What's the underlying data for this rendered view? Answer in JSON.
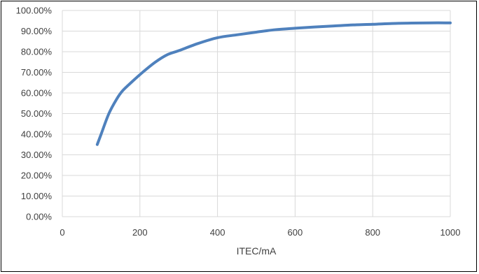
{
  "chart_data": {
    "type": "line",
    "title": "",
    "xlabel": "ITEC/mA",
    "ylabel": "",
    "xlim": [
      0,
      1000
    ],
    "ylim": [
      0,
      100
    ],
    "x_ticks": [
      0,
      200,
      400,
      600,
      800,
      1000
    ],
    "x_tick_labels": [
      "0",
      "200",
      "400",
      "600",
      "800",
      "1000"
    ],
    "y_ticks": [
      0,
      10,
      20,
      30,
      40,
      50,
      60,
      70,
      80,
      90,
      100
    ],
    "y_tick_labels": [
      "0.00%",
      "10.00%",
      "20.00%",
      "30.00%",
      "40.00%",
      "50.00%",
      "60.00%",
      "70.00%",
      "80.00%",
      "90.00%",
      "100.00%"
    ],
    "grid": true,
    "legend": "none",
    "series": [
      {
        "color": "#4f81bd",
        "x": [
          90,
          100,
          120,
          140,
          155,
          180,
          210,
          240,
          270,
          300,
          350,
          400,
          450,
          500,
          550,
          600,
          650,
          700,
          750,
          800,
          850,
          900,
          950,
          1000
        ],
        "y": [
          35,
          40,
          50,
          57,
          61,
          65.5,
          70.5,
          75,
          78.5,
          80.5,
          84,
          86.8,
          88.2,
          89.5,
          90.7,
          91.4,
          92,
          92.5,
          93,
          93.3,
          93.7,
          93.9,
          94,
          94
        ]
      }
    ]
  }
}
